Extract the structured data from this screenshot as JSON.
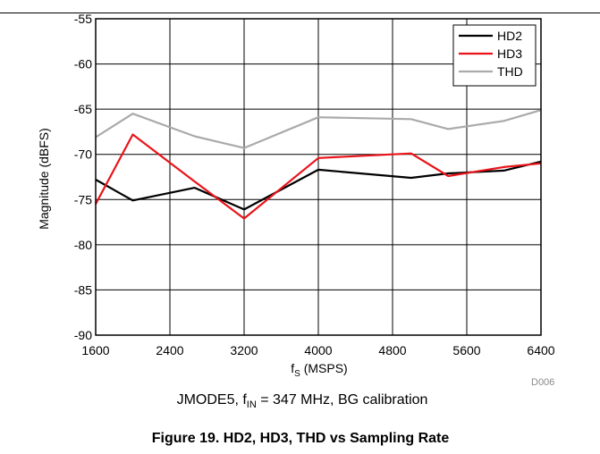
{
  "chart_data": {
    "type": "line",
    "xlabel_main": "f",
    "xlabel_sub": "S",
    "xlabel_rest": " (MSPS)",
    "ylabel": "Magnitude (dBFS)",
    "xlim": [
      1600,
      6400
    ],
    "ylim": [
      -90,
      -55
    ],
    "x_ticks": [
      1600,
      2400,
      3200,
      4000,
      4800,
      5600,
      6400
    ],
    "y_ticks": [
      -90,
      -85,
      -80,
      -75,
      -70,
      -65,
      -60,
      -55
    ],
    "grid": true,
    "legend_position": "top-right",
    "series": [
      {
        "name": "HD2",
        "color": "#000000",
        "x": [
          1600,
          2000,
          2667,
          3200,
          4000,
          5000,
          5400,
          6000,
          6400
        ],
        "y": [
          -72.8,
          -75.1,
          -73.7,
          -76.1,
          -71.7,
          -72.6,
          -72.1,
          -71.8,
          -70.8
        ]
      },
      {
        "name": "HD3",
        "color": "#e8141a",
        "x": [
          1600,
          2000,
          2667,
          3200,
          4000,
          5000,
          5400,
          6000,
          6400
        ],
        "y": [
          -75.5,
          -67.8,
          -73.0,
          -77.1,
          -70.4,
          -69.9,
          -72.4,
          -71.4,
          -71.0
        ]
      },
      {
        "name": "THD",
        "color": "#aaaaaa",
        "x": [
          1600,
          2000,
          2667,
          3200,
          4000,
          5000,
          5400,
          6000,
          6400
        ],
        "y": [
          -68.1,
          -65.5,
          -68.0,
          -69.3,
          -65.9,
          -66.1,
          -67.2,
          -66.3,
          -65.1
        ]
      }
    ],
    "subtitle_main": "JMODE5, f",
    "subtitle_sub": "IN",
    "subtitle_rest": " = 347 MHz, BG calibration",
    "figure_code": "D006",
    "caption": "Figure 19. HD2, HD3, THD vs Sampling Rate"
  }
}
